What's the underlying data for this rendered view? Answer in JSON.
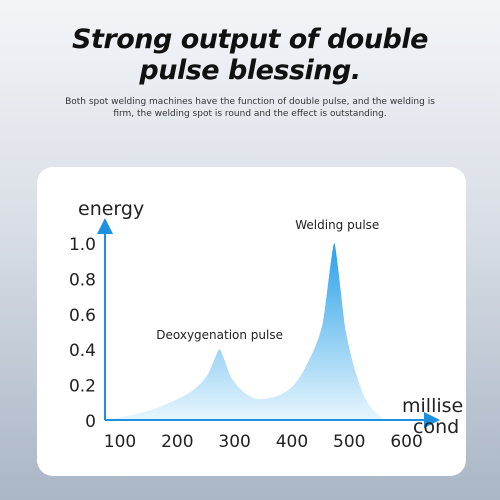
{
  "headline": {
    "line1": "Strong output of double",
    "line2": "pulse blessing."
  },
  "description": "Both spot welding machines have the function of double pulse, and the welding is firm, the welding spot is round and the effect is outstanding.",
  "chart_data": {
    "type": "area",
    "ylabel": "energy",
    "xlabel_line1": "millise",
    "xlabel_line2": "cond",
    "x_ticks": [
      "100",
      "200",
      "300",
      "400",
      "500",
      "600"
    ],
    "y_ticks": [
      "0",
      "0.2",
      "0.4",
      "0.6",
      "0.8",
      "1.0"
    ],
    "xlim": [
      100,
      600
    ],
    "ylim": [
      0,
      1.0
    ],
    "peaks": [
      {
        "label": "Deoxygenation pulse",
        "x": 300,
        "y": 0.4
      },
      {
        "label": "Welding pulse",
        "x": 500,
        "y": 1.0
      }
    ],
    "series": [
      {
        "x": [
          100,
          150,
          200,
          250,
          280,
          300,
          320,
          350,
          380,
          420,
          450,
          480,
          500,
          520,
          550,
          580,
          600
        ],
        "y": [
          0.0,
          0.03,
          0.08,
          0.16,
          0.26,
          0.4,
          0.24,
          0.14,
          0.12,
          0.17,
          0.3,
          0.55,
          1.0,
          0.5,
          0.15,
          0.02,
          0.0
        ]
      }
    ],
    "colors": {
      "fill_top": "#1f9be8",
      "fill_bottom": "#e6f5fd",
      "axis": "#1e90e0"
    }
  }
}
